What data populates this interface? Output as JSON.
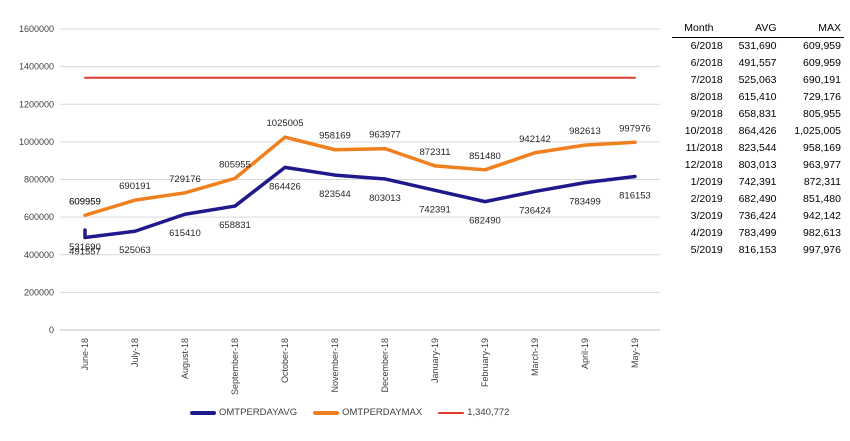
{
  "chart_data": {
    "type": "line",
    "categories": [
      "June-18",
      "June-18",
      "July-18",
      "August-18",
      "September-18",
      "October-18",
      "November-18",
      "December-18",
      "January-19",
      "February-19",
      "March-19",
      "April-19",
      "May-19"
    ],
    "tick_labels": [
      "June-18",
      "July-18",
      "August-18",
      "September-18",
      "October-18",
      "November-18",
      "December-18",
      "January-19",
      "February-19",
      "March-19",
      "April-19",
      "May-19"
    ],
    "series": [
      {
        "name": "OMTPERDAYAVG",
        "color": "#1f1a8c",
        "values": [
          531690,
          491557,
          525063,
          615410,
          658831,
          864426,
          823544,
          803013,
          742391,
          682490,
          736424,
          783499,
          816153
        ]
      },
      {
        "name": "OMTPERDAYMAX",
        "color": "#f07f1e",
        "values": [
          609959,
          609959,
          690191,
          729176,
          805955,
          1025005,
          958169,
          963977,
          872311,
          851480,
          942142,
          982613,
          997976
        ]
      },
      {
        "name": "1,340,772",
        "color": "#e03a2f",
        "values": [
          1340772,
          1340772,
          1340772,
          1340772,
          1340772,
          1340772,
          1340772,
          1340772,
          1340772,
          1340772,
          1340772,
          1340772,
          1340772
        ]
      }
    ],
    "ylim": [
      0,
      1600000
    ],
    "yticks": [
      0,
      200000,
      400000,
      600000,
      800000,
      1000000,
      1200000,
      1400000,
      1600000
    ],
    "grid": true,
    "legend": "bottom",
    "title": "",
    "xlabel": "",
    "ylabel": ""
  },
  "table": {
    "headers": [
      "Month",
      "AVG",
      "MAX"
    ],
    "rows": [
      [
        "6/2018",
        "531,690",
        "609,959"
      ],
      [
        "6/2018",
        "491,557",
        "609,959"
      ],
      [
        "7/2018",
        "525,063",
        "690,191"
      ],
      [
        "8/2018",
        "615,410",
        "729,176"
      ],
      [
        "9/2018",
        "658,831",
        "805,955"
      ],
      [
        "10/2018",
        "864,426",
        "1,025,005"
      ],
      [
        "11/2018",
        "823,544",
        "958,169"
      ],
      [
        "12/2018",
        "803,013",
        "963,977"
      ],
      [
        "1/2019",
        "742,391",
        "872,311"
      ],
      [
        "2/2019",
        "682,490",
        "851,480"
      ],
      [
        "3/2019",
        "736,424",
        "942,142"
      ],
      [
        "4/2019",
        "783,499",
        "982,613"
      ],
      [
        "5/2019",
        "816,153",
        "997,976"
      ]
    ]
  }
}
